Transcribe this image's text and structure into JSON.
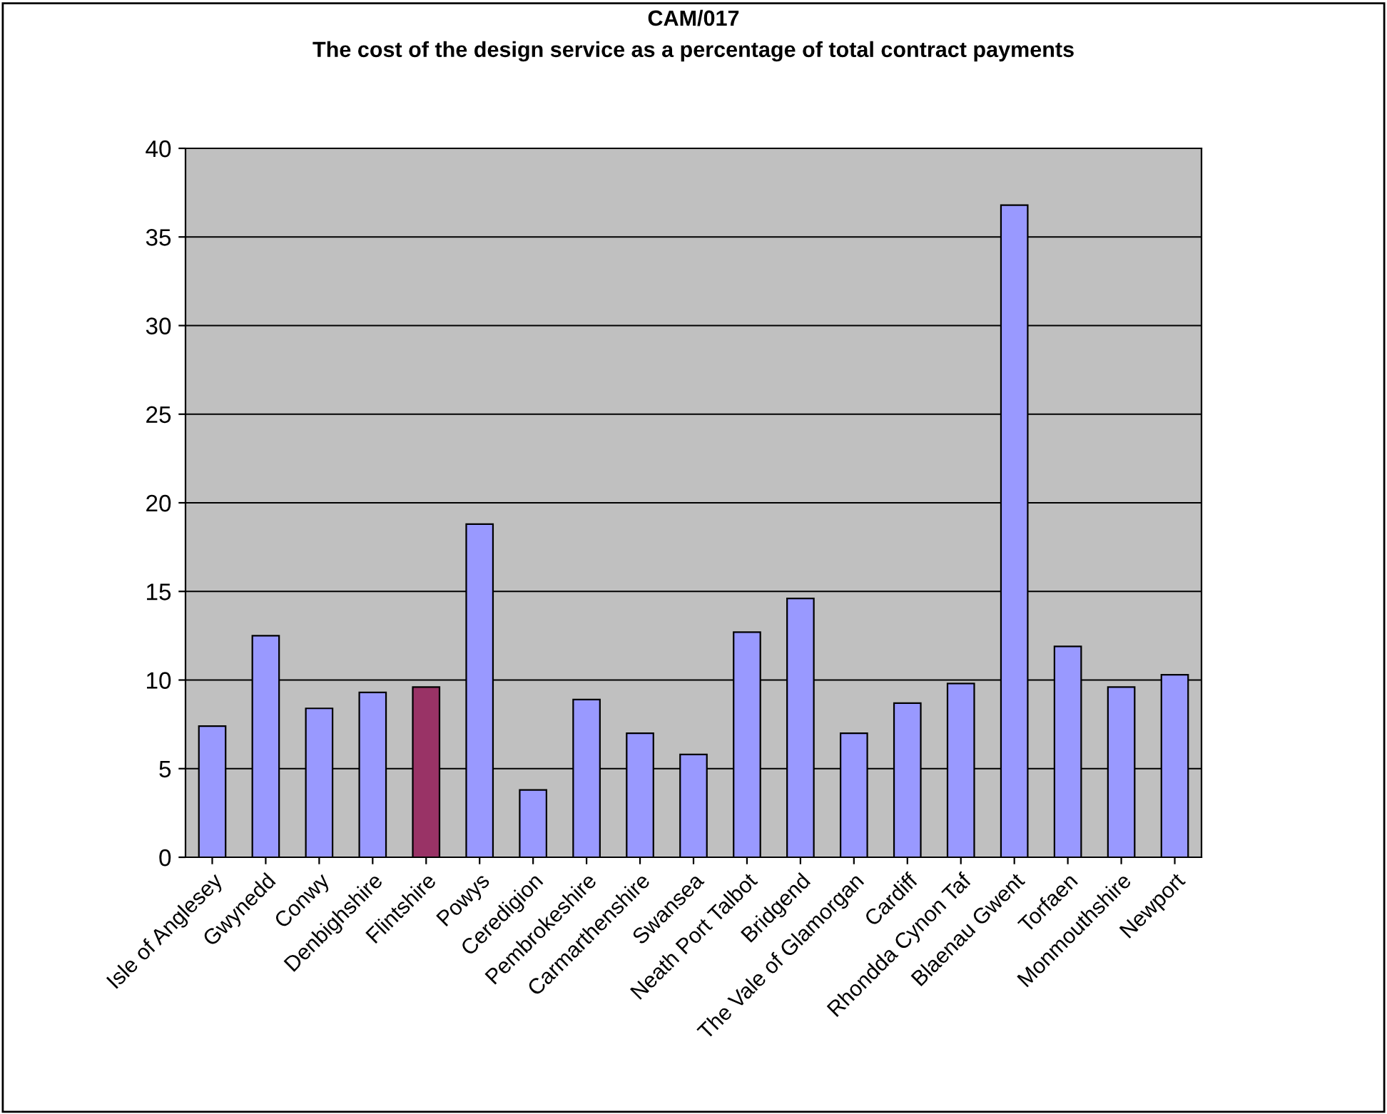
{
  "chart_data": {
    "type": "bar",
    "title": "CAM/017",
    "subtitle": "The cost of the design service as a percentage of total contract payments",
    "categories": [
      "Isle of Anglesey",
      "Gwynedd",
      "Conwy",
      "Denbighshire",
      "Flintshire",
      "Powys",
      "Ceredigion",
      "Pembrokeshire",
      "Carmarthenshire",
      "Swansea",
      "Neath Port Talbot",
      "Bridgend",
      "The Vale of Glamorgan",
      "Cardiff",
      "Rhondda Cynon Taf",
      "Blaenau Gwent",
      "Torfaen",
      "Monmouthshire",
      "Newport"
    ],
    "values": [
      7.4,
      12.5,
      8.4,
      9.3,
      9.6,
      18.8,
      3.8,
      8.9,
      7.0,
      5.8,
      12.7,
      14.6,
      7.0,
      8.7,
      9.8,
      36.8,
      11.9,
      9.6,
      10.3
    ],
    "colors": [
      "#9999ff",
      "#9999ff",
      "#9999ff",
      "#9999ff",
      "#993366",
      "#9999ff",
      "#9999ff",
      "#9999ff",
      "#9999ff",
      "#9999ff",
      "#9999ff",
      "#9999ff",
      "#9999ff",
      "#9999ff",
      "#9999ff",
      "#9999ff",
      "#9999ff",
      "#9999ff",
      "#9999ff"
    ],
    "ylim": [
      0,
      40
    ],
    "yticks": [
      0,
      5,
      10,
      15,
      20,
      25,
      30,
      35,
      40
    ],
    "grid": "y",
    "legend": false
  }
}
